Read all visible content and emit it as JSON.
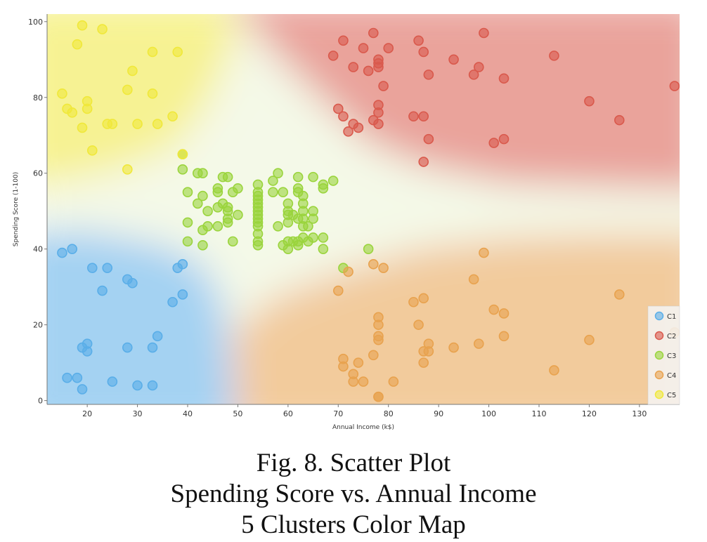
{
  "caption": {
    "line1": "Fig. 8. Scatter Plot",
    "line2": "Spending Score vs. Annual Income",
    "line3": "5 Clusters Color Map"
  },
  "colors": {
    "C1": "#5aaee8",
    "C2": "#d9594c",
    "C3": "#9ad43c",
    "C4": "#e8a24e",
    "C5": "#f0e83a"
  },
  "chart_data": {
    "type": "scatter",
    "title": "",
    "xlabel": "Annual Income (k$)",
    "ylabel": "Spending Score (1-100)",
    "xlim": [
      12,
      138
    ],
    "ylim": [
      -1,
      102
    ],
    "xticks": [
      20,
      30,
      40,
      50,
      60,
      70,
      80,
      90,
      100,
      110,
      120,
      130
    ],
    "yticks": [
      0,
      20,
      40,
      60,
      80,
      100
    ],
    "grid": false,
    "background": "cluster color-map regions",
    "legend": {
      "position": "bottom-right",
      "entries": [
        "C1",
        "C2",
        "C3",
        "C4",
        "C5"
      ]
    },
    "series": [
      {
        "name": "C1",
        "points": [
          [
            15,
            39
          ],
          [
            16,
            6
          ],
          [
            17,
            40
          ],
          [
            18,
            6
          ],
          [
            19,
            3
          ],
          [
            19,
            14
          ],
          [
            20,
            15
          ],
          [
            20,
            13
          ],
          [
            21,
            35
          ],
          [
            23,
            29
          ],
          [
            24,
            35
          ],
          [
            25,
            5
          ],
          [
            28,
            14
          ],
          [
            28,
            32
          ],
          [
            29,
            31
          ],
          [
            30,
            4
          ],
          [
            33,
            4
          ],
          [
            33,
            14
          ],
          [
            34,
            17
          ],
          [
            37,
            26
          ],
          [
            38,
            35
          ],
          [
            39,
            36
          ],
          [
            39,
            28
          ]
        ]
      },
      {
        "name": "C2",
        "points": [
          [
            70,
            77
          ],
          [
            71,
            75
          ],
          [
            71,
            95
          ],
          [
            72,
            71
          ],
          [
            73,
            88
          ],
          [
            73,
            73
          ],
          [
            74,
            72
          ],
          [
            75,
            93
          ],
          [
            76,
            87
          ],
          [
            77,
            97
          ],
          [
            77,
            74
          ],
          [
            78,
            90
          ],
          [
            78,
            89
          ],
          [
            78,
            88
          ],
          [
            78,
            78
          ],
          [
            78,
            76
          ],
          [
            78,
            73
          ],
          [
            79,
            83
          ],
          [
            80,
            93
          ],
          [
            85,
            75
          ],
          [
            86,
            95
          ],
          [
            87,
            92
          ],
          [
            87,
            75
          ],
          [
            87,
            63
          ],
          [
            88,
            86
          ],
          [
            88,
            69
          ],
          [
            93,
            90
          ],
          [
            97,
            86
          ],
          [
            98,
            88
          ],
          [
            99,
            97
          ],
          [
            101,
            68
          ],
          [
            103,
            85
          ],
          [
            103,
            69
          ],
          [
            113,
            91
          ],
          [
            120,
            79
          ],
          [
            126,
            74
          ],
          [
            137,
            83
          ],
          [
            69,
            91
          ]
        ]
      },
      {
        "name": "C3",
        "points": [
          [
            39,
            61
          ],
          [
            39,
            65
          ],
          [
            40,
            47
          ],
          [
            40,
            42
          ],
          [
            40,
            55
          ],
          [
            42,
            60
          ],
          [
            42,
            52
          ],
          [
            43,
            60
          ],
          [
            43,
            54
          ],
          [
            43,
            45
          ],
          [
            43,
            41
          ],
          [
            44,
            50
          ],
          [
            44,
            46
          ],
          [
            46,
            51
          ],
          [
            46,
            46
          ],
          [
            46,
            56
          ],
          [
            46,
            55
          ],
          [
            47,
            52
          ],
          [
            47,
            59
          ],
          [
            48,
            51
          ],
          [
            48,
            59
          ],
          [
            48,
            50
          ],
          [
            48,
            48
          ],
          [
            48,
            47
          ],
          [
            49,
            55
          ],
          [
            49,
            42
          ],
          [
            50,
            49
          ],
          [
            50,
            56
          ],
          [
            54,
            47
          ],
          [
            54,
            54
          ],
          [
            54,
            53
          ],
          [
            54,
            48
          ],
          [
            54,
            52
          ],
          [
            54,
            42
          ],
          [
            54,
            51
          ],
          [
            54,
            55
          ],
          [
            54,
            41
          ],
          [
            54,
            44
          ],
          [
            54,
            57
          ],
          [
            54,
            46
          ],
          [
            54,
            49
          ],
          [
            54,
            50
          ],
          [
            57,
            58
          ],
          [
            57,
            55
          ],
          [
            58,
            60
          ],
          [
            58,
            46
          ],
          [
            59,
            55
          ],
          [
            59,
            41
          ],
          [
            60,
            49
          ],
          [
            60,
            40
          ],
          [
            60,
            42
          ],
          [
            60,
            52
          ],
          [
            60,
            47
          ],
          [
            60,
            50
          ],
          [
            61,
            42
          ],
          [
            61,
            49
          ],
          [
            62,
            41
          ],
          [
            62,
            48
          ],
          [
            62,
            59
          ],
          [
            62,
            55
          ],
          [
            62,
            56
          ],
          [
            62,
            42
          ],
          [
            63,
            50
          ],
          [
            63,
            46
          ],
          [
            63,
            43
          ],
          [
            63,
            48
          ],
          [
            63,
            52
          ],
          [
            63,
            54
          ],
          [
            64,
            42
          ],
          [
            64,
            46
          ],
          [
            65,
            48
          ],
          [
            65,
            50
          ],
          [
            65,
            43
          ],
          [
            65,
            59
          ],
          [
            67,
            43
          ],
          [
            67,
            57
          ],
          [
            67,
            56
          ],
          [
            67,
            40
          ],
          [
            69,
            58
          ],
          [
            71,
            35
          ],
          [
            76,
            40
          ]
        ]
      },
      {
        "name": "C4",
        "points": [
          [
            70,
            29
          ],
          [
            71,
            11
          ],
          [
            71,
            9
          ],
          [
            72,
            34
          ],
          [
            73,
            5
          ],
          [
            73,
            7
          ],
          [
            74,
            10
          ],
          [
            75,
            5
          ],
          [
            77,
            12
          ],
          [
            77,
            36
          ],
          [
            78,
            22
          ],
          [
            78,
            17
          ],
          [
            78,
            20
          ],
          [
            78,
            16
          ],
          [
            78,
            1
          ],
          [
            78,
            1
          ],
          [
            79,
            35
          ],
          [
            81,
            5
          ],
          [
            85,
            26
          ],
          [
            86,
            20
          ],
          [
            87,
            27
          ],
          [
            87,
            13
          ],
          [
            87,
            10
          ],
          [
            88,
            13
          ],
          [
            88,
            15
          ],
          [
            93,
            14
          ],
          [
            97,
            32
          ],
          [
            98,
            15
          ],
          [
            99,
            39
          ],
          [
            101,
            24
          ],
          [
            103,
            17
          ],
          [
            103,
            23
          ],
          [
            113,
            8
          ],
          [
            120,
            16
          ],
          [
            126,
            28
          ],
          [
            137,
            18
          ]
        ]
      },
      {
        "name": "C5",
        "points": [
          [
            15,
            81
          ],
          [
            16,
            77
          ],
          [
            17,
            76
          ],
          [
            18,
            94
          ],
          [
            19,
            72
          ],
          [
            19,
            99
          ],
          [
            20,
            77
          ],
          [
            20,
            79
          ],
          [
            21,
            66
          ],
          [
            23,
            98
          ],
          [
            24,
            73
          ],
          [
            25,
            73
          ],
          [
            28,
            82
          ],
          [
            28,
            61
          ],
          [
            29,
            87
          ],
          [
            30,
            73
          ],
          [
            33,
            92
          ],
          [
            33,
            81
          ],
          [
            34,
            73
          ],
          [
            37,
            75
          ],
          [
            38,
            92
          ],
          [
            39,
            65
          ]
        ]
      }
    ]
  }
}
